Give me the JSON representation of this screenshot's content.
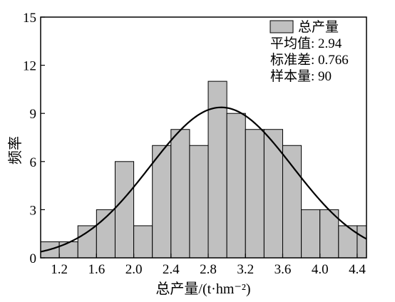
{
  "chart_data": {
    "type": "bar",
    "title": "",
    "xlabel": "总产量/(t·hm⁻²)",
    "ylabel": "频率",
    "xlim": [
      1.0,
      4.5
    ],
    "ylim": [
      0,
      15
    ],
    "xticks": [
      "1.2",
      "1.6",
      "2.0",
      "2.4",
      "2.8",
      "3.2",
      "3.6",
      "4.0",
      "4.4"
    ],
    "yticks": [
      "0",
      "3",
      "6",
      "9",
      "12",
      "15"
    ],
    "bin_width": 0.2,
    "bins": [
      {
        "x0": 1.0,
        "x1": 1.2,
        "count": 1
      },
      {
        "x0": 1.2,
        "x1": 1.4,
        "count": 1
      },
      {
        "x0": 1.4,
        "x1": 1.6,
        "count": 2
      },
      {
        "x0": 1.6,
        "x1": 1.8,
        "count": 3
      },
      {
        "x0": 1.8,
        "x1": 2.0,
        "count": 6
      },
      {
        "x0": 2.0,
        "x1": 2.2,
        "count": 2
      },
      {
        "x0": 2.2,
        "x1": 2.4,
        "count": 7
      },
      {
        "x0": 2.4,
        "x1": 2.6,
        "count": 8
      },
      {
        "x0": 2.6,
        "x1": 2.8,
        "count": 7
      },
      {
        "x0": 2.8,
        "x1": 3.0,
        "count": 11
      },
      {
        "x0": 3.0,
        "x1": 3.2,
        "count": 9
      },
      {
        "x0": 3.2,
        "x1": 3.4,
        "count": 8
      },
      {
        "x0": 3.4,
        "x1": 3.6,
        "count": 8
      },
      {
        "x0": 3.6,
        "x1": 3.8,
        "count": 7
      },
      {
        "x0": 3.8,
        "x1": 4.0,
        "count": 3
      },
      {
        "x0": 4.0,
        "x1": 4.2,
        "count": 3
      },
      {
        "x0": 4.2,
        "x1": 4.4,
        "count": 2
      },
      {
        "x0": 4.4,
        "x1": 4.6,
        "count": 2
      }
    ],
    "normal_curve": {
      "mean": 2.94,
      "sd": 0.766,
      "n": 90
    },
    "legend": {
      "placement": "top-right",
      "series_name": "总产量",
      "lines": [
        "平均值: 2.94",
        "标准差: 0.766",
        "样本量: 90"
      ]
    },
    "grid": false,
    "colors": {
      "bar_fill": "#c0c0c0",
      "bar_stroke": "#000000",
      "curve": "#000000"
    }
  }
}
